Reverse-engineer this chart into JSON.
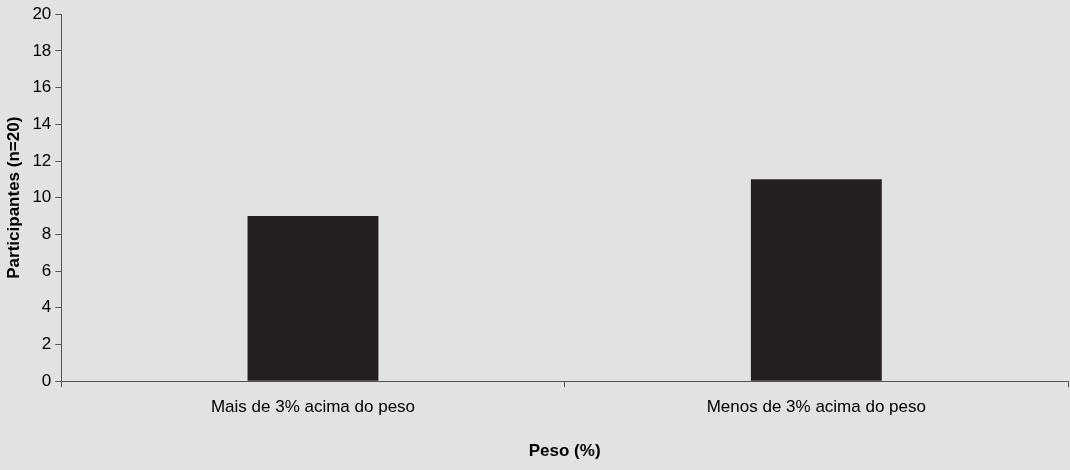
{
  "chart_data": {
    "type": "bar",
    "categories": [
      "Mais de 3% acima do peso",
      "Menos de 3% acima do peso"
    ],
    "values": [
      9,
      11
    ],
    "color": "#231f20",
    "xlabel": "Peso (%)",
    "ylabel": "Participantes (n=20)",
    "ylim": [
      0,
      20
    ],
    "yticks": [
      0,
      2,
      4,
      6,
      8,
      10,
      12,
      14,
      16,
      18,
      20
    ],
    "grid": false,
    "legend": false
  }
}
